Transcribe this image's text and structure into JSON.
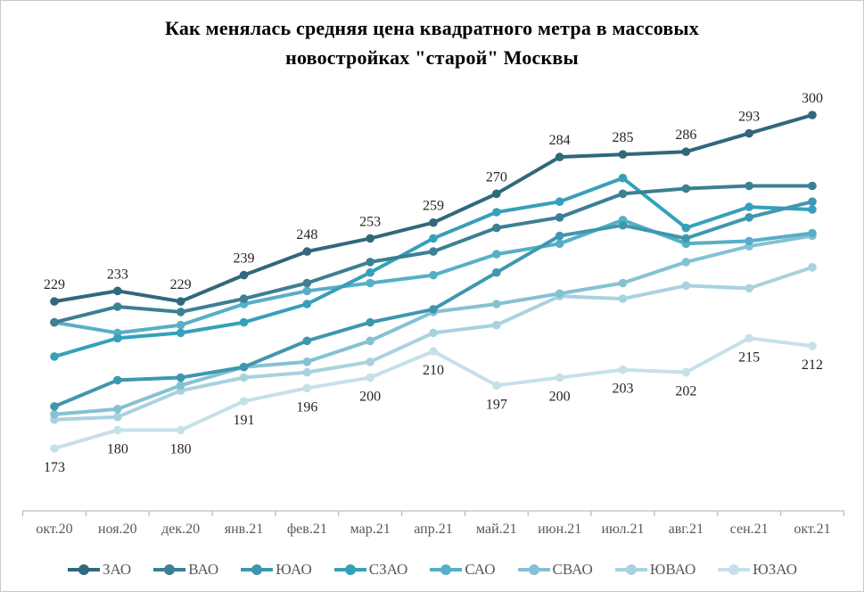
{
  "title": {
    "line1": "Как менялась средняя цена квадратного метра в массовых",
    "line2": "новостройках \"старой\" Москвы"
  },
  "chart_data": {
    "type": "line",
    "x": [
      "окт.20",
      "ноя.20",
      "дек.20",
      "янв.21",
      "фев.21",
      "мар.21",
      "апр.21",
      "май.21",
      "июн.21",
      "июл.21",
      "авг.21",
      "сен.21",
      "окт.21"
    ],
    "series": [
      {
        "name": "ЗАО",
        "color": "#31687b",
        "labels": "above",
        "values": [
          229,
          233,
          229,
          239,
          248,
          253,
          259,
          270,
          284,
          285,
          286,
          293,
          300
        ]
      },
      {
        "name": "ВАО",
        "color": "#3d7f93",
        "labels": "none",
        "values": [
          221,
          227,
          225,
          230,
          236,
          244,
          248,
          257,
          261,
          270,
          272,
          273,
          273
        ]
      },
      {
        "name": "ЮАО",
        "color": "#3f97ae",
        "labels": "none",
        "values": [
          189,
          199,
          200,
          204,
          214,
          221,
          226,
          240,
          254,
          258,
          253,
          261,
          267
        ]
      },
      {
        "name": "СЗАО",
        "color": "#36a0ba",
        "labels": "none",
        "values": [
          208,
          215,
          217,
          221,
          228,
          240,
          253,
          263,
          267,
          276,
          257,
          265,
          264
        ]
      },
      {
        "name": "САО",
        "color": "#57afc6",
        "labels": "none",
        "values": [
          221,
          217,
          220,
          228,
          233,
          236,
          239,
          247,
          251,
          260,
          251,
          252,
          255
        ]
      },
      {
        "name": "СВАО",
        "color": "#84c2d3",
        "labels": "none",
        "values": [
          186,
          188,
          197,
          204,
          206,
          214,
          225,
          228,
          232,
          236,
          244,
          250,
          254
        ]
      },
      {
        "name": "ЮВАО",
        "color": "#a8d2df",
        "labels": "none",
        "values": [
          184,
          185,
          195,
          200,
          202,
          206,
          217,
          220,
          231,
          230,
          235,
          234,
          242
        ]
      },
      {
        "name": "ЮЗАО",
        "color": "#c6e0e9",
        "labels": "below",
        "values": [
          173,
          180,
          180,
          191,
          196,
          200,
          210,
          197,
          200,
          203,
          202,
          215,
          212
        ]
      }
    ],
    "ylim": [
      160,
      315
    ],
    "grid": false,
    "legend_position": "bottom",
    "axis": {
      "line_color": "#bfbfbf",
      "tick_color": "#bfbfbf",
      "label_color": "#595959"
    },
    "data_label_color": "#262626"
  }
}
